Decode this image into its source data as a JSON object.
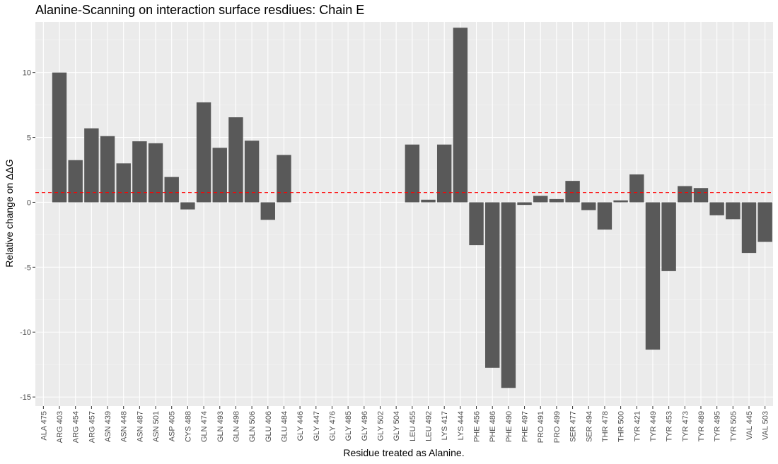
{
  "chart_data": {
    "type": "bar",
    "title": "Alanine-Scanning on interaction surface resdiues: Chain E",
    "xlabel": "Residue treated as Alanine.",
    "ylabel": "Relative change on ΔΔG",
    "ylim": [
      -15.7,
      13.9
    ],
    "yticks": [
      -15,
      -10,
      -5,
      0,
      5,
      10
    ],
    "reference_line": 0.75,
    "grid": true,
    "colors": {
      "bar": "#595959",
      "panel": "#ebebeb",
      "grid_major": "#ffffff",
      "grid_minor": "#f5f5f5",
      "reference_line": "#ff0000"
    },
    "categories": [
      "ALA 475",
      "ARG 403",
      "ARG 454",
      "ARG 457",
      "ASN 439",
      "ASN 448",
      "ASN 487",
      "ASN 501",
      "ASP 405",
      "CYS 488",
      "GLN 474",
      "GLN 493",
      "GLN 498",
      "GLN 506",
      "GLU 406",
      "GLU 484",
      "GLY 446",
      "GLY 447",
      "GLY 476",
      "GLY 485",
      "GLY 496",
      "GLY 502",
      "GLY 504",
      "LEU 455",
      "LEU 492",
      "LYS 417",
      "LYS 444",
      "PHE 456",
      "PHE 486",
      "PHE 490",
      "PHE 497",
      "PRO 491",
      "PRO 499",
      "SER 477",
      "SER 494",
      "THR 478",
      "THR 500",
      "TYR 421",
      "TYR 449",
      "TYR 453",
      "TYR 473",
      "TYR 489",
      "TYR 495",
      "TYR 505",
      "VAL 445",
      "VAL 503"
    ],
    "values": [
      0,
      10.0,
      3.25,
      5.7,
      5.1,
      3.0,
      4.7,
      4.55,
      1.95,
      -0.55,
      7.7,
      4.2,
      6.55,
      4.75,
      -1.35,
      3.65,
      0,
      0,
      0,
      0,
      0,
      0,
      0,
      4.45,
      0.2,
      4.45,
      13.45,
      -3.3,
      -12.75,
      -14.3,
      -0.2,
      0.5,
      0.25,
      1.65,
      -0.6,
      -2.1,
      0.15,
      2.15,
      -11.35,
      -5.3,
      1.25,
      1.1,
      -1.0,
      -1.3,
      -3.9,
      -3.05
    ]
  }
}
